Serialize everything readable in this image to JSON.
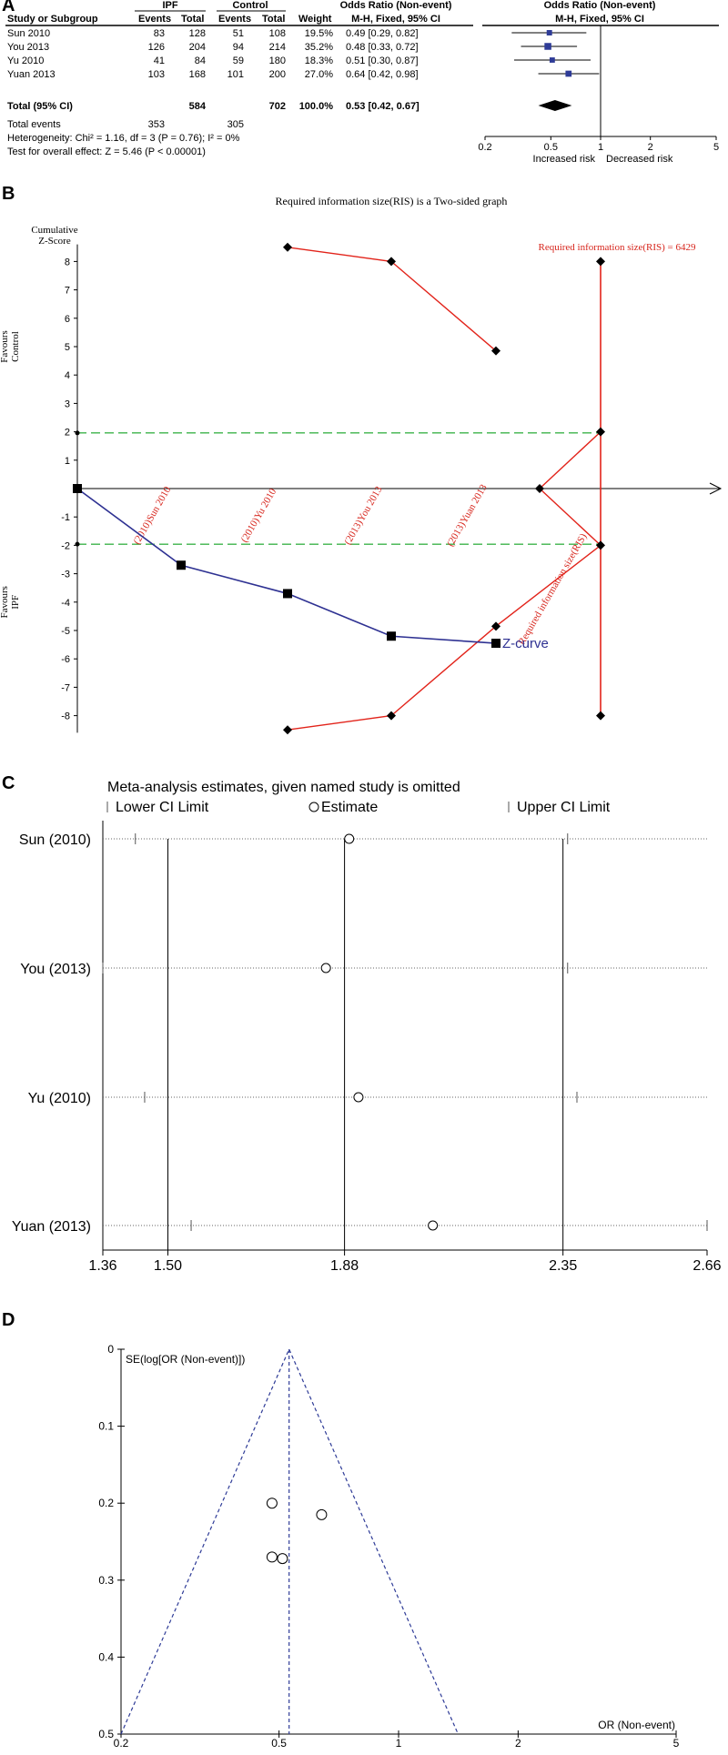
{
  "chart_data": [
    {
      "panel": "A",
      "type": "table",
      "headers": {
        "group1": "IPF",
        "group2": "Control",
        "or_table": "Odds Ratio (Non-event)",
        "or_table_sub": "M-H, Fixed, 95% CI",
        "or_plot": "Odds Ratio (Non-event)",
        "or_plot_sub": "M-H, Fixed, 95% CI",
        "cols": [
          "Study or Subgroup",
          "Events",
          "Total",
          "Events",
          "Total",
          "Weight"
        ]
      },
      "studies": [
        {
          "name": "Sun 2010",
          "e1": "83",
          "t1": "128",
          "e2": "51",
          "t2": "108",
          "w": "19.5%",
          "ci": "0.49 [0.29, 0.82]",
          "or": 0.49,
          "lo": 0.29,
          "hi": 0.82
        },
        {
          "name": "You 2013",
          "e1": "126",
          "t1": "204",
          "e2": "94",
          "t2": "214",
          "w": "35.2%",
          "ci": "0.48 [0.33, 0.72]",
          "or": 0.48,
          "lo": 0.33,
          "hi": 0.72
        },
        {
          "name": "Yu 2010",
          "e1": "41",
          "t1": "84",
          "e2": "59",
          "t2": "180",
          "w": "18.3%",
          "ci": "0.51 [0.30, 0.87]",
          "or": 0.51,
          "lo": 0.3,
          "hi": 0.87
        },
        {
          "name": "Yuan 2013",
          "e1": "103",
          "t1": "168",
          "e2": "101",
          "t2": "200",
          "w": "27.0%",
          "ci": "0.64 [0.42, 0.98]",
          "or": 0.64,
          "lo": 0.42,
          "hi": 0.98
        }
      ],
      "total": {
        "name": "Total (95% CI)",
        "t1": "584",
        "t2": "702",
        "w": "100.0%",
        "ci": "0.53 [0.42, 0.67]",
        "or": 0.53,
        "lo": 0.42,
        "hi": 0.67
      },
      "total_events": {
        "label": "Total events",
        "e1": "353",
        "e2": "305"
      },
      "heterogeneity": "Heterogeneity: Chi² = 1.16, df = 3 (P = 0.76); I² = 0%",
      "overall": "Test for overall effect: Z = 5.46 (P < 0.00001)",
      "axis_ticks": [
        "0.2",
        "0.5",
        "1",
        "2",
        "5"
      ],
      "axis_label_left": "Increased risk",
      "axis_label_right": "Decreased risk",
      "x_scale": "log",
      "xlim": [
        0.2,
        5
      ]
    },
    {
      "panel": "B",
      "type": "line",
      "title": "Required information size(RIS) is a Two-sided graph",
      "ylabel_top": [
        "Cumulative",
        "Z-Score"
      ],
      "favours_control": [
        "Favours",
        "Control"
      ],
      "favours_ipf": [
        "Favours",
        "IPF"
      ],
      "y_ticks": [
        "8",
        "7",
        "6",
        "5",
        "4",
        "3",
        "2",
        "1",
        "-1",
        "-2",
        "-3",
        "-4",
        "-5",
        "-6",
        "-7",
        "-8"
      ],
      "ylim": [
        -8.6,
        8.6
      ],
      "x_categories": [
        "(2010)Sun 2010",
        "(2010)Yu 2010",
        "(2013)You 2013",
        "(2013)Yuan 2013"
      ],
      "ris_label": "Required information size(RIS) = 6429",
      "ris_axis_label": "Required information size(RIS)",
      "z_curve_label": "Z-curve",
      "z_curve": [
        0,
        -2.7,
        -3.7,
        -5.2,
        -5.45
      ],
      "upper_boundary": [
        8.5,
        8.0,
        4.85
      ],
      "lower_boundary": [
        -8.5,
        -8.0,
        -4.85
      ],
      "futility_upper": [
        0,
        2
      ],
      "futility_lower": [
        0,
        -2
      ],
      "conventional_z": 1.96,
      "colors": {
        "z_curve": "#2e3192",
        "boundary": "#e2231a",
        "conventional": "#3cb34a",
        "ris_text": "#d7251c"
      }
    },
    {
      "panel": "C",
      "type": "scatter",
      "title": "Meta-analysis estimates, given named study is omitted",
      "legend": [
        "Lower CI Limit",
        "Estimate",
        "Upper CI Limit"
      ],
      "rows": [
        {
          "label": "Sun (2010)",
          "lower": 1.43,
          "estimate": 1.89,
          "upper": 2.36
        },
        {
          "label": "You (2013)",
          "lower": 1.36,
          "estimate": 1.84,
          "upper": 2.36
        },
        {
          "label": "Yu (2010)",
          "lower": 1.45,
          "estimate": 1.91,
          "upper": 2.38
        },
        {
          "label": "Yuan (2013)",
          "lower": 1.55,
          "estimate": 2.07,
          "upper": 2.66
        }
      ],
      "ref_lines": [
        1.5,
        1.88,
        2.35
      ],
      "x_ticks": [
        "1.36",
        "1.50",
        "1.88",
        "2.35",
        "2.66"
      ],
      "xlim": [
        1.36,
        2.66
      ]
    },
    {
      "panel": "D",
      "type": "scatter",
      "ylabel": "SE(log[OR (Non-event)])",
      "xlabel": "OR (Non-event)",
      "y_ticks": [
        "0",
        "0.1",
        "0.2",
        "0.3",
        "0.4",
        "0.5"
      ],
      "x_ticks": [
        "0.2",
        "0.5",
        "1",
        "2",
        "5"
      ],
      "ylim": [
        0,
        0.5
      ],
      "xlim": [
        0.2,
        5
      ],
      "x_scale": "log",
      "pooled_or": 0.53,
      "points": [
        {
          "or": 0.48,
          "se": 0.2
        },
        {
          "or": 0.64,
          "se": 0.215
        },
        {
          "or": 0.48,
          "se": 0.27
        },
        {
          "or": 0.51,
          "se": 0.272
        }
      ]
    }
  ]
}
